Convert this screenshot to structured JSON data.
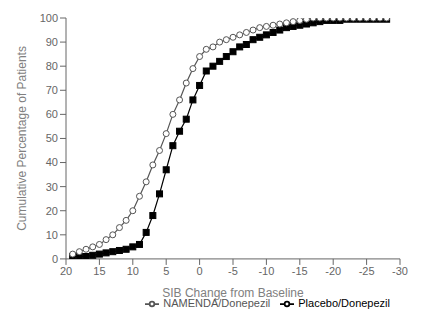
{
  "chart_data": {
    "type": "line",
    "title": "",
    "xlabel": "SIB Change from Baseline",
    "ylabel": "Cumulative Percentage of Patients",
    "xlim": [
      20,
      -30
    ],
    "ylim": [
      0,
      100
    ],
    "xticks": [
      20,
      15,
      10,
      5,
      0,
      -5,
      -10,
      -15,
      -20,
      -25,
      -30
    ],
    "yticks": [
      0,
      10,
      20,
      30,
      40,
      50,
      60,
      70,
      80,
      90,
      100
    ],
    "grid": false,
    "legend": "lower right",
    "x": [
      19,
      18,
      17,
      16,
      15,
      14,
      13,
      12,
      11,
      10,
      9,
      8,
      7,
      6,
      5,
      4,
      3,
      2,
      1,
      0,
      -1,
      -2,
      -3,
      -4,
      -5,
      -6,
      -7,
      -8,
      -9,
      -10,
      -11,
      -12,
      -13,
      -14,
      -15,
      -16,
      -17,
      -18,
      -19,
      -20,
      -21,
      -22,
      -23,
      -24,
      -25,
      -26,
      -27,
      -28
    ],
    "series": [
      {
        "name": "Placebo/Donepezil",
        "color": "#000000",
        "marker": "square",
        "values": [
          1,
          1,
          1,
          1.5,
          2,
          2.5,
          3,
          3.5,
          4,
          5,
          6,
          11,
          18,
          27,
          37,
          47,
          53,
          58,
          66,
          72,
          78,
          80,
          82,
          84,
          86,
          88,
          89,
          91,
          92,
          93,
          94,
          95,
          96,
          96.5,
          97,
          97.5,
          98,
          98.5,
          99,
          99,
          99,
          99.5,
          99.5,
          99.5,
          99.5,
          99.5,
          99.5,
          99.5
        ]
      },
      {
        "name": "NAMENDA/Donepezil",
        "color": "#555555",
        "marker": "open_circle",
        "values": [
          2,
          3,
          4,
          5,
          6,
          8,
          10,
          13,
          16,
          20,
          26,
          32,
          39,
          45,
          52,
          60,
          66,
          73,
          79,
          84,
          87,
          88,
          90,
          91,
          92,
          93,
          94,
          95,
          96,
          96.5,
          97,
          97.5,
          98,
          98.5,
          99,
          99.5,
          100,
          100,
          100,
          100,
          100,
          100,
          100,
          100,
          100,
          100,
          100,
          100
        ]
      }
    ]
  }
}
